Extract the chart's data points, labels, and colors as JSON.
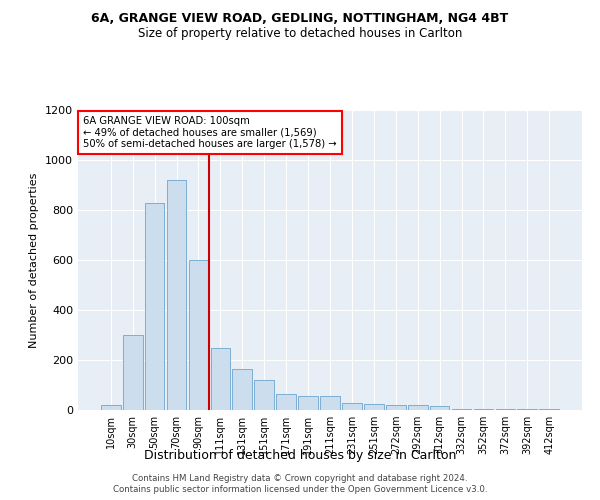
{
  "title1": "6A, GRANGE VIEW ROAD, GEDLING, NOTTINGHAM, NG4 4BT",
  "title2": "Size of property relative to detached houses in Carlton",
  "xlabel": "Distribution of detached houses by size in Carlton",
  "ylabel": "Number of detached properties",
  "footer1": "Contains HM Land Registry data © Crown copyright and database right 2024.",
  "footer2": "Contains public sector information licensed under the Open Government Licence v3.0.",
  "annotation_line1": "6A GRANGE VIEW ROAD: 100sqm",
  "annotation_line2": "← 49% of detached houses are smaller (1,569)",
  "annotation_line3": "50% of semi-detached houses are larger (1,578) →",
  "bar_color": "#ccdded",
  "bar_edge_color": "#7bafd4",
  "background_color": "#e8eef5",
  "vline_color": "#cc0000",
  "categories": [
    "10sqm",
    "30sqm",
    "50sqm",
    "70sqm",
    "90sqm",
    "111sqm",
    "131sqm",
    "151sqm",
    "171sqm",
    "191sqm",
    "211sqm",
    "231sqm",
    "251sqm",
    "272sqm",
    "292sqm",
    "312sqm",
    "332sqm",
    "352sqm",
    "372sqm",
    "392sqm",
    "412sqm"
  ],
  "values": [
    20,
    300,
    830,
    920,
    600,
    250,
    165,
    120,
    65,
    55,
    55,
    30,
    25,
    20,
    20,
    15,
    5,
    5,
    5,
    5,
    5
  ],
  "ylim": [
    0,
    1200
  ],
  "yticks": [
    0,
    200,
    400,
    600,
    800,
    1000,
    1200
  ],
  "vline_index": 4.5
}
